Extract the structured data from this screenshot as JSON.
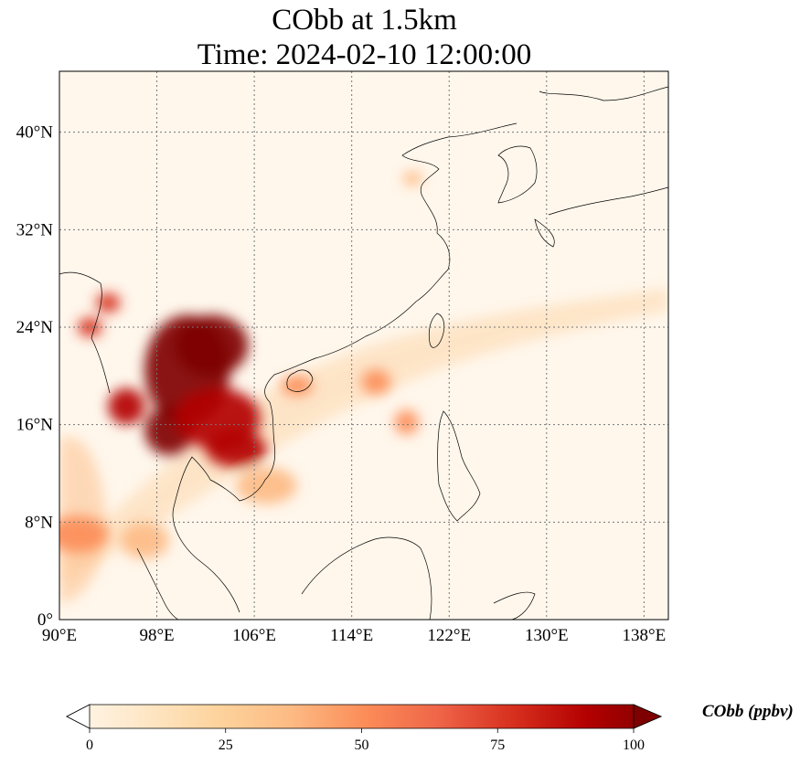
{
  "chart_data": {
    "type": "heatmap",
    "title": "CObb at 1.5km",
    "subtitle": "Time: 2024-02-10 12:00:00",
    "xlim": [
      90,
      140
    ],
    "ylim": [
      0,
      45
    ],
    "x_ticks": [
      90,
      98,
      106,
      114,
      122,
      130,
      138
    ],
    "x_tick_labels": [
      "90°E",
      "98°E",
      "106°E",
      "114°E",
      "122°E",
      "130°E",
      "138°E"
    ],
    "y_ticks": [
      0,
      8,
      16,
      24,
      32,
      40
    ],
    "y_tick_labels": [
      "0°",
      "8°N",
      "16°N",
      "24°N",
      "32°N",
      "40°N"
    ],
    "grid": true,
    "colorbar": {
      "label": "CObb (ppbv)",
      "range": [
        0,
        100
      ],
      "ticks": [
        0,
        25,
        50,
        75,
        100
      ],
      "tick_labels": [
        "0",
        "25",
        "50",
        "75",
        "100"
      ],
      "extend": "both",
      "colormap": [
        "#fff7ec",
        "#fee8c8",
        "#fdd49e",
        "#fdbb84",
        "#fc8d59",
        "#ef6548",
        "#d7301f",
        "#b30000",
        "#7f0000"
      ]
    },
    "plumes": [
      {
        "lon": 100.5,
        "lat": 20.5,
        "value": 100,
        "rx": 3.5,
        "ry": 4.5
      },
      {
        "lon": 102.5,
        "lat": 22.5,
        "value": 95,
        "rx": 3.0,
        "ry": 2.5
      },
      {
        "lon": 99.0,
        "lat": 15.5,
        "value": 100,
        "rx": 2.0,
        "ry": 2.0
      },
      {
        "lon": 103.0,
        "lat": 16.5,
        "value": 90,
        "rx": 3.5,
        "ry": 2.5
      },
      {
        "lon": 104.5,
        "lat": 14.0,
        "value": 90,
        "rx": 2.5,
        "ry": 1.5
      },
      {
        "lon": 95.5,
        "lat": 17.5,
        "value": 85,
        "rx": 1.5,
        "ry": 1.5
      },
      {
        "lon": 94.0,
        "lat": 26.0,
        "value": 80,
        "rx": 1.0,
        "ry": 0.8
      },
      {
        "lon": 92.5,
        "lat": 24.0,
        "value": 70,
        "rx": 1.0,
        "ry": 0.8
      },
      {
        "lon": 109.5,
        "lat": 19.2,
        "value": 55,
        "rx": 1.3,
        "ry": 0.8
      },
      {
        "lon": 116.0,
        "lat": 19.5,
        "value": 55,
        "rx": 1.2,
        "ry": 1.0
      },
      {
        "lon": 118.5,
        "lat": 16.2,
        "value": 45,
        "rx": 1.0,
        "ry": 1.0
      },
      {
        "lon": 91.5,
        "lat": 7.0,
        "value": 45,
        "rx": 2.5,
        "ry": 1.5
      },
      {
        "lon": 97.0,
        "lat": 6.5,
        "value": 40,
        "rx": 2.0,
        "ry": 1.5
      },
      {
        "lon": 119.0,
        "lat": 36.2,
        "value": 40,
        "rx": 0.8,
        "ry": 0.6
      },
      {
        "lon": 107.0,
        "lat": 11.0,
        "value": 35,
        "rx": 2.5,
        "ry": 1.5
      }
    ]
  }
}
